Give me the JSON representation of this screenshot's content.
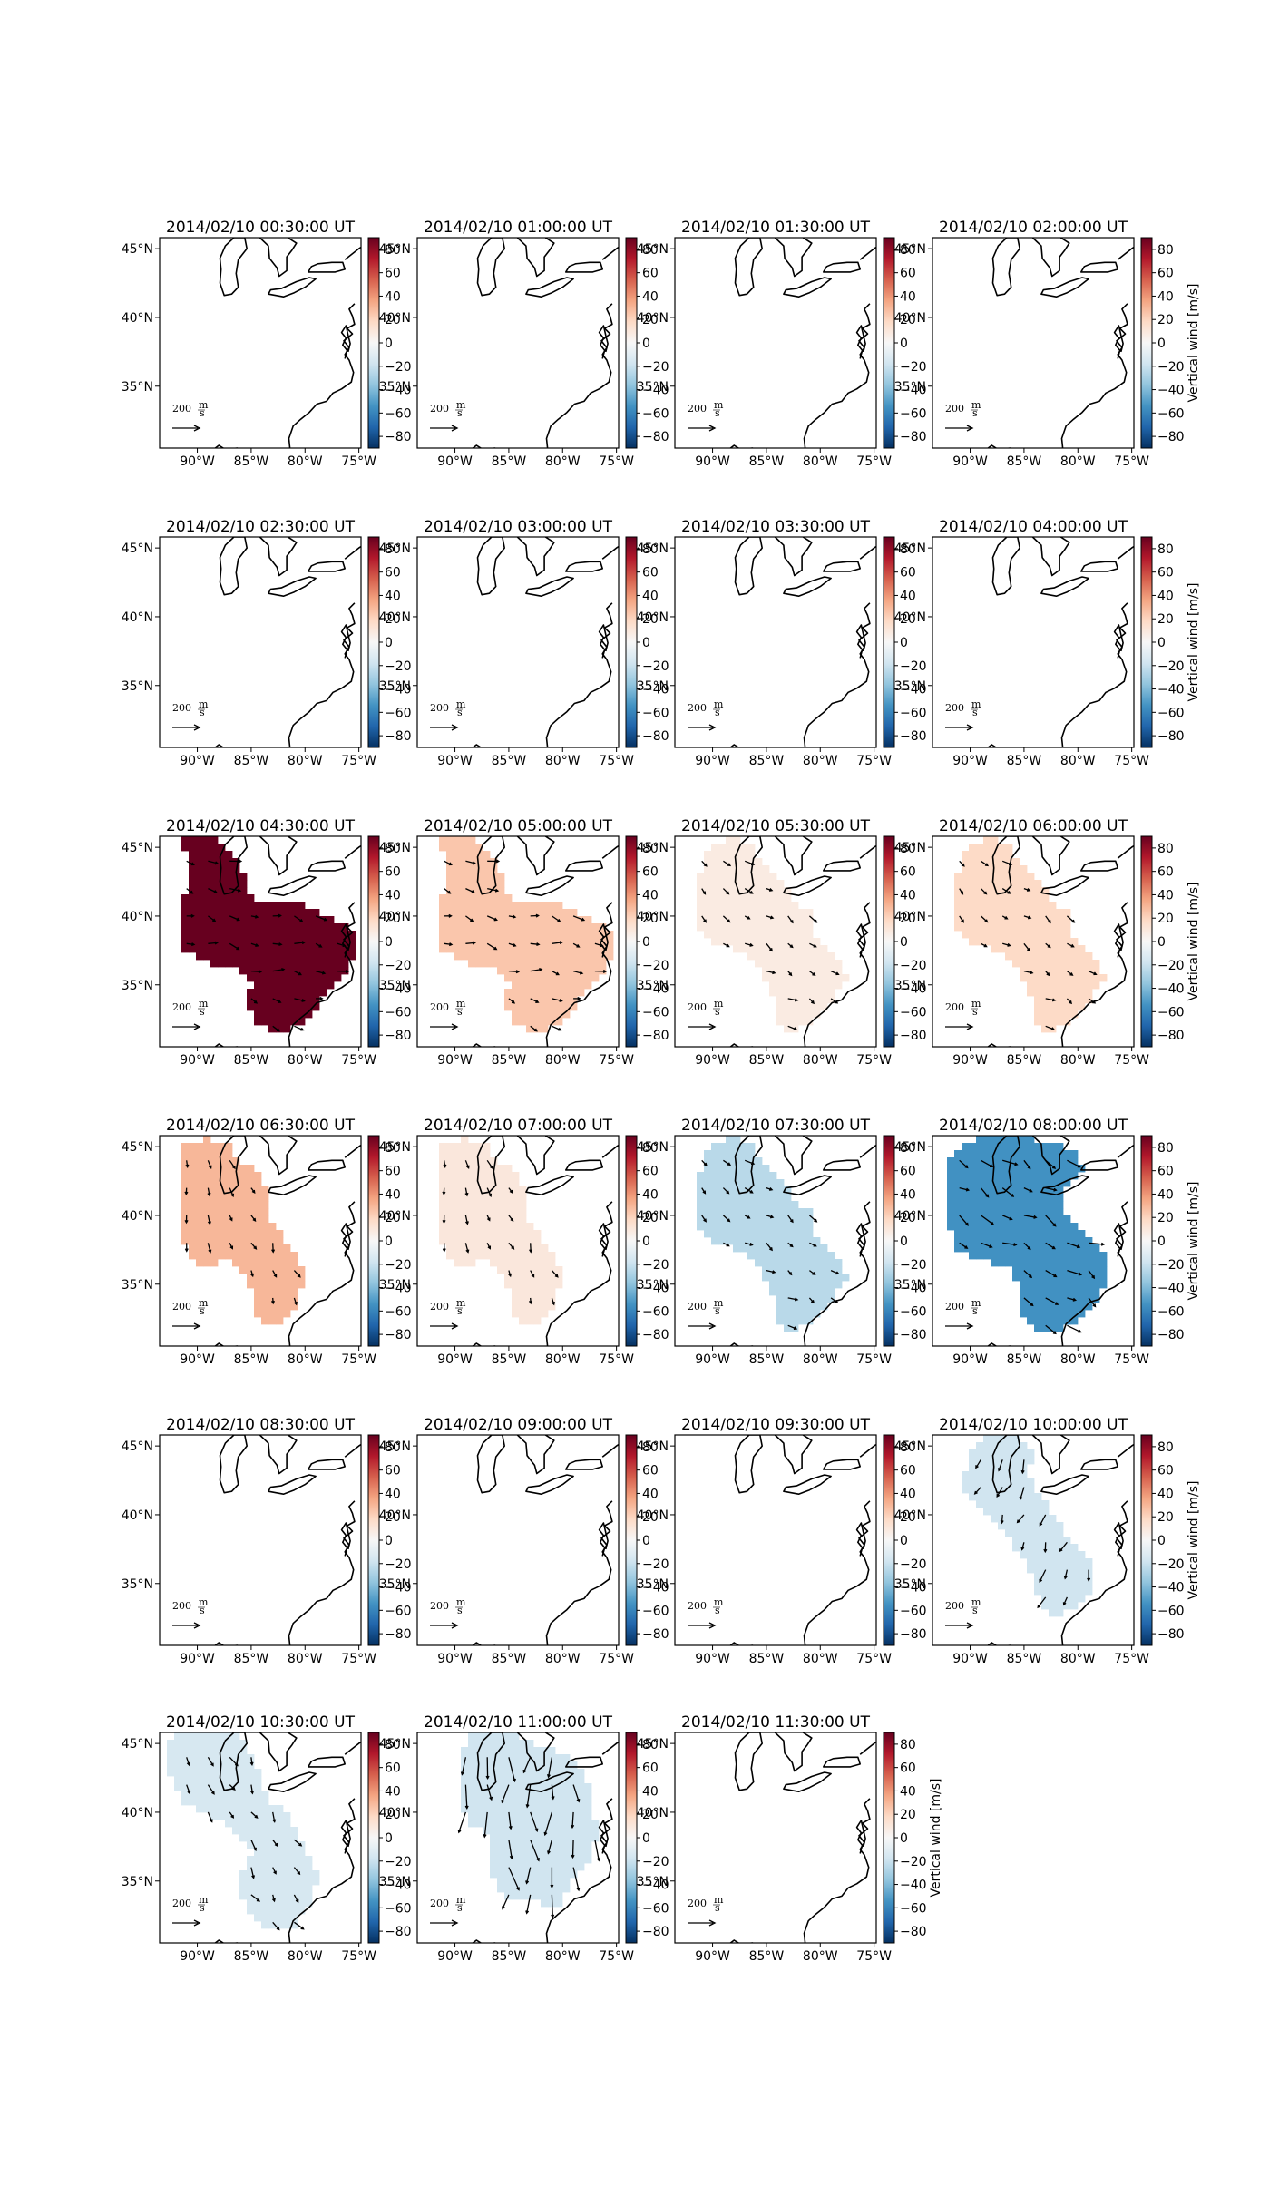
{
  "chart_data": {
    "type": "map-panels",
    "colorbar": {
      "label": "Vertical wind [m/s]",
      "range": [
        -90,
        90
      ],
      "ticks": [
        "80",
        "60",
        "40",
        "20",
        "0",
        "−20",
        "−40",
        "−60",
        "−80"
      ],
      "tick_values": [
        80,
        60,
        40,
        20,
        0,
        -20,
        -40,
        -60,
        -80
      ],
      "colormap": "RdBu_r",
      "colors": [
        "#053061",
        "#2166ac",
        "#4393c3",
        "#92c5de",
        "#d1e5f0",
        "#f7f7f7",
        "#fddbc7",
        "#f4a582",
        "#d6604d",
        "#b2182b",
        "#67001f"
      ]
    },
    "map": {
      "lon_ticks": [
        "90°W",
        "85°W",
        "80°W",
        "75°W"
      ],
      "lon_values": [
        -90,
        -85,
        -80,
        -75
      ],
      "lat_ticks": [
        "45°N",
        "40°N",
        "35°N"
      ],
      "lat_values": [
        45,
        40,
        35
      ],
      "extent": {
        "lon": [
          -93.5,
          -74.8
        ],
        "lat": [
          30.5,
          45.8
        ]
      },
      "reference_arrow": {
        "label": "200",
        "unit_num": "m",
        "unit_den": "s"
      }
    },
    "panels": [
      {
        "title": "2014/02/10 00:30:00 UT",
        "value": null
      },
      {
        "title": "2014/02/10 01:00:00 UT",
        "value": null
      },
      {
        "title": "2014/02/10 01:30:00 UT",
        "value": null
      },
      {
        "title": "2014/02/10 02:00:00 UT",
        "value": null
      },
      {
        "title": "2014/02/10 02:30:00 UT",
        "value": null
      },
      {
        "title": "2014/02/10 03:00:00 UT",
        "value": null
      },
      {
        "title": "2014/02/10 03:30:00 UT",
        "value": null
      },
      {
        "title": "2014/02/10 04:00:00 UT",
        "value": null
      },
      {
        "title": "2014/02/10 04:30:00 UT",
        "value": 90,
        "region": "A"
      },
      {
        "title": "2014/02/10 05:00:00 UT",
        "value": 25,
        "region": "A"
      },
      {
        "title": "2014/02/10 05:30:00 UT",
        "value": 8,
        "region": "B"
      },
      {
        "title": "2014/02/10 06:00:00 UT",
        "value": 18,
        "region": "B"
      },
      {
        "title": "2014/02/10 06:30:00 UT",
        "value": 30,
        "region": "C"
      },
      {
        "title": "2014/02/10 07:00:00 UT",
        "value": 10,
        "region": "C"
      },
      {
        "title": "2014/02/10 07:30:00 UT",
        "value": -25,
        "region": "B"
      },
      {
        "title": "2014/02/10 08:00:00 UT",
        "value": -55,
        "region": "D"
      },
      {
        "title": "2014/02/10 08:30:00 UT",
        "value": null
      },
      {
        "title": "2014/02/10 09:00:00 UT",
        "value": null
      },
      {
        "title": "2014/02/10 09:30:00 UT",
        "value": null
      },
      {
        "title": "2014/02/10 10:00:00 UT",
        "value": -18,
        "region": "E"
      },
      {
        "title": "2014/02/10 10:30:00 UT",
        "value": -15,
        "region": "F"
      },
      {
        "title": "2014/02/10 11:00:00 UT",
        "value": -18,
        "region": "G"
      },
      {
        "title": "2014/02/10 11:30:00 UT",
        "value": null
      }
    ]
  }
}
